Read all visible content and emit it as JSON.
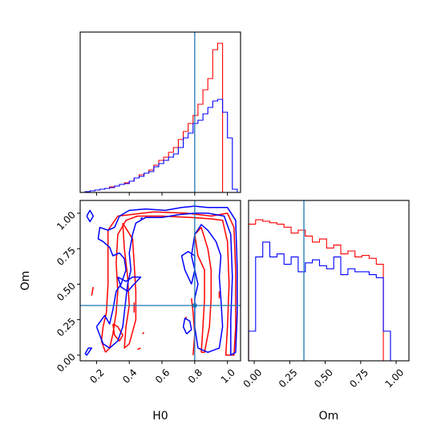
{
  "chart_data": {
    "type": "corner",
    "parameters": [
      "H0",
      "Om"
    ],
    "truths": {
      "H0": 0.8,
      "Om": 0.35
    },
    "colors": {
      "series_a": "#ff0000",
      "series_b": "#0000ff",
      "truth": "#1f77b4"
    },
    "axes": {
      "H0": {
        "label": "H0",
        "range": [
          0.1,
          1.08
        ],
        "ticks": [
          0.2,
          0.4,
          0.6,
          0.8,
          1.0
        ],
        "tick_labels": [
          "0.2",
          "0.4",
          "0.6",
          "0.8",
          "1.0"
        ]
      },
      "Om": {
        "label": "Om",
        "range": [
          -0.04,
          1.09
        ],
        "ticks": [
          0.0,
          0.25,
          0.5,
          0.75,
          1.0
        ],
        "tick_labels": [
          "0.00",
          "0.25",
          "0.50",
          "0.75",
          "1.00"
        ]
      }
    },
    "hist_H0": {
      "bin_edges": [
        0.1,
        0.13,
        0.16,
        0.19,
        0.22,
        0.25,
        0.28,
        0.31,
        0.34,
        0.37,
        0.4,
        0.43,
        0.46,
        0.49,
        0.52,
        0.55,
        0.58,
        0.61,
        0.64,
        0.67,
        0.7,
        0.73,
        0.76,
        0.79,
        0.82,
        0.85,
        0.88,
        0.91,
        0.94,
        0.97,
        1.0,
        1.03,
        1.06
      ],
      "series": [
        {
          "color": "#ff0000",
          "values": [
            0,
            0.005,
            0.01,
            0.015,
            0.02,
            0.025,
            0.035,
            0.04,
            0.05,
            0.06,
            0.07,
            0.09,
            0.11,
            0.12,
            0.14,
            0.17,
            0.2,
            0.22,
            0.25,
            0.28,
            0.33,
            0.38,
            0.43,
            0.48,
            0.55,
            0.64,
            0.71,
            0.89,
            0.93,
            0.0,
            0.0,
            0.0
          ]
        },
        {
          "color": "#0000ff",
          "values": [
            0,
            0.005,
            0.01,
            0.015,
            0.02,
            0.025,
            0.03,
            0.04,
            0.05,
            0.055,
            0.07,
            0.09,
            0.1,
            0.12,
            0.13,
            0.16,
            0.18,
            0.2,
            0.22,
            0.24,
            0.28,
            0.34,
            0.37,
            0.43,
            0.45,
            0.49,
            0.53,
            0.57,
            0.58,
            0.5,
            0.34,
            0.02
          ]
        }
      ]
    },
    "hist_Om": {
      "bin_edges": [
        -0.04,
        0.01,
        0.06,
        0.11,
        0.16,
        0.21,
        0.26,
        0.31,
        0.36,
        0.41,
        0.46,
        0.51,
        0.56,
        0.61,
        0.66,
        0.71,
        0.76,
        0.81,
        0.86,
        0.91,
        0.96,
        1.01,
        1.06
      ],
      "series": [
        {
          "color": "#ff0000",
          "values": [
            0.92,
            0.95,
            0.94,
            0.93,
            0.92,
            0.9,
            0.86,
            0.88,
            0.84,
            0.8,
            0.82,
            0.76,
            0.78,
            0.72,
            0.74,
            0.7,
            0.71,
            0.69,
            0.65,
            0.0,
            0.0,
            0.0
          ]
        },
        {
          "color": "#0000ff",
          "values": [
            0.2,
            0.7,
            0.8,
            0.7,
            0.72,
            0.65,
            0.7,
            0.6,
            0.66,
            0.68,
            0.64,
            0.62,
            0.7,
            0.58,
            0.62,
            0.6,
            0.6,
            0.58,
            0.56,
            0.2,
            0.0,
            0.0
          ]
        }
      ]
    },
    "contours": {
      "series_a": [
        [
          [
            0.255,
            0.02
          ],
          [
            0.23,
            0.1
          ],
          [
            0.24,
            0.2
          ],
          [
            0.26,
            0.3
          ],
          [
            0.27,
            0.5
          ],
          [
            0.27,
            0.7
          ],
          [
            0.27,
            0.88
          ],
          [
            0.33,
            0.98
          ],
          [
            0.55,
            1.01
          ],
          [
            0.75,
            1.0
          ],
          [
            0.9,
            0.98
          ],
          [
            1.0,
            1.0
          ],
          [
            1.04,
            0.9
          ],
          [
            1.05,
            0.6
          ],
          [
            1.05,
            0.2
          ],
          [
            1.04,
            0.0
          ],
          [
            0.99,
            0.0
          ],
          [
            1.0,
            0.2
          ],
          [
            1.01,
            0.5
          ],
          [
            1.0,
            0.8
          ],
          [
            0.97,
            0.95
          ],
          [
            0.9,
            0.96
          ],
          [
            0.78,
            0.97
          ],
          [
            0.6,
            0.98
          ],
          [
            0.45,
            0.98
          ],
          [
            0.38,
            0.95
          ],
          [
            0.33,
            0.85
          ],
          [
            0.32,
            0.65
          ],
          [
            0.33,
            0.45
          ],
          [
            0.32,
            0.3
          ],
          [
            0.3,
            0.15
          ],
          [
            0.28,
            0.05
          ],
          [
            0.255,
            0.02
          ]
        ],
        [
          [
            0.36,
            0.93
          ],
          [
            0.37,
            0.75
          ],
          [
            0.39,
            0.55
          ],
          [
            0.4,
            0.35
          ],
          [
            0.38,
            0.2
          ],
          [
            0.37,
            0.05
          ],
          [
            0.4,
            0.08
          ],
          [
            0.44,
            0.25
          ],
          [
            0.44,
            0.45
          ],
          [
            0.43,
            0.65
          ],
          [
            0.42,
            0.82
          ],
          [
            0.36,
            0.93
          ]
        ],
        [
          [
            0.84,
            0.02
          ],
          [
            0.85,
            0.2
          ],
          [
            0.86,
            0.4
          ],
          [
            0.86,
            0.6
          ],
          [
            0.82,
            0.7
          ],
          [
            0.8,
            0.85
          ],
          [
            0.84,
            0.9
          ],
          [
            0.88,
            0.75
          ],
          [
            0.9,
            0.6
          ],
          [
            0.9,
            0.4
          ],
          [
            0.89,
            0.2
          ],
          [
            0.86,
            0.02
          ],
          [
            0.84,
            0.02
          ]
        ],
        [
          [
            0.3,
            0.22
          ],
          [
            0.33,
            0.2
          ],
          [
            0.36,
            0.14
          ],
          [
            0.34,
            0.1
          ],
          [
            0.31,
            0.14
          ],
          [
            0.3,
            0.22
          ]
        ],
        [
          [
            0.79,
            0.0
          ],
          [
            0.8,
            0.15
          ],
          [
            0.79,
            0.3
          ],
          [
            0.78,
            0.4
          ]
        ],
        [
          [
            0.17,
            0.42
          ],
          [
            0.18,
            0.48
          ]
        ],
        [
          [
            0.43,
            0.3
          ],
          [
            0.43,
            0.37
          ]
        ],
        [
          [
            0.48,
            0.15
          ],
          [
            0.49,
            0.16
          ]
        ],
        [
          [
            0.47,
            0.05
          ],
          [
            0.45,
            0.04
          ]
        ],
        [
          [
            0.74,
            0.25
          ],
          [
            0.75,
            0.27
          ]
        ],
        [
          [
            0.95,
            0.4
          ],
          [
            0.95,
            0.45
          ]
        ]
      ],
      "series_b": [
        [
          [
            0.13,
            0.01
          ],
          [
            0.15,
            0.05
          ],
          [
            0.17,
            0.05
          ],
          [
            0.14,
            0.0
          ],
          [
            0.13,
            0.01
          ]
        ],
        [
          [
            0.14,
            0.98
          ],
          [
            0.16,
            1.02
          ],
          [
            0.18,
            0.98
          ],
          [
            0.16,
            0.94
          ],
          [
            0.14,
            0.98
          ]
        ],
        [
          [
            0.2,
            0.2
          ],
          [
            0.25,
            0.28
          ],
          [
            0.28,
            0.22
          ],
          [
            0.3,
            0.32
          ],
          [
            0.32,
            0.45
          ],
          [
            0.35,
            0.5
          ],
          [
            0.38,
            0.6
          ],
          [
            0.37,
            0.68
          ],
          [
            0.34,
            0.72
          ],
          [
            0.3,
            0.7
          ],
          [
            0.28,
            0.76
          ],
          [
            0.24,
            0.8
          ],
          [
            0.21,
            0.82
          ],
          [
            0.22,
            0.9
          ],
          [
            0.27,
            0.88
          ],
          [
            0.31,
            0.9
          ],
          [
            0.34,
            0.98
          ],
          [
            0.4,
            1.02
          ],
          [
            0.5,
            1.03
          ],
          [
            0.62,
            1.02
          ],
          [
            0.72,
            1.04
          ],
          [
            0.8,
            1.05
          ],
          [
            0.88,
            1.04
          ],
          [
            1.0,
            1.04
          ],
          [
            1.05,
            0.95
          ],
          [
            1.06,
            0.6
          ],
          [
            1.06,
            0.3
          ],
          [
            1.05,
            0.02
          ],
          [
            1.02,
            0.0
          ],
          [
            1.02,
            0.25
          ],
          [
            1.03,
            0.55
          ],
          [
            1.02,
            0.85
          ],
          [
            0.98,
            0.98
          ],
          [
            0.88,
            1.0
          ],
          [
            0.8,
            1.0
          ],
          [
            0.7,
            0.99
          ],
          [
            0.6,
            0.97
          ],
          [
            0.5,
            0.97
          ],
          [
            0.44,
            0.93
          ],
          [
            0.42,
            0.85
          ],
          [
            0.4,
            0.72
          ],
          [
            0.41,
            0.6
          ],
          [
            0.39,
            0.5
          ],
          [
            0.38,
            0.4
          ],
          [
            0.37,
            0.3
          ],
          [
            0.36,
            0.2
          ],
          [
            0.33,
            0.1
          ],
          [
            0.28,
            0.05
          ],
          [
            0.24,
            0.08
          ],
          [
            0.2,
            0.2
          ]
        ],
        [
          [
            0.33,
            0.55
          ],
          [
            0.38,
            0.52
          ],
          [
            0.42,
            0.55
          ],
          [
            0.47,
            0.55
          ],
          [
            0.43,
            0.5
          ],
          [
            0.39,
            0.45
          ],
          [
            0.35,
            0.48
          ],
          [
            0.33,
            0.55
          ]
        ],
        [
          [
            0.82,
            0.05
          ],
          [
            0.8,
            0.2
          ],
          [
            0.8,
            0.4
          ],
          [
            0.82,
            0.5
          ],
          [
            0.8,
            0.6
          ],
          [
            0.78,
            0.7
          ],
          [
            0.8,
            0.85
          ],
          [
            0.84,
            0.92
          ],
          [
            0.88,
            0.88
          ],
          [
            0.93,
            0.8
          ],
          [
            0.96,
            0.7
          ],
          [
            0.95,
            0.55
          ],
          [
            0.96,
            0.4
          ],
          [
            0.97,
            0.2
          ],
          [
            0.95,
            0.05
          ],
          [
            0.88,
            0.02
          ],
          [
            0.82,
            0.05
          ]
        ],
        [
          [
            0.78,
            0.5
          ],
          [
            0.74,
            0.6
          ],
          [
            0.72,
            0.7
          ],
          [
            0.76,
            0.73
          ],
          [
            0.8,
            0.7
          ],
          [
            0.8,
            0.6
          ],
          [
            0.78,
            0.5
          ]
        ],
        [
          [
            0.75,
            0.15
          ],
          [
            0.73,
            0.2
          ],
          [
            0.74,
            0.26
          ],
          [
            0.77,
            0.24
          ],
          [
            0.78,
            0.18
          ],
          [
            0.75,
            0.15
          ]
        ],
        [
          [
            0.47,
            0.96
          ],
          [
            0.48,
            0.97
          ]
        ]
      ]
    }
  }
}
